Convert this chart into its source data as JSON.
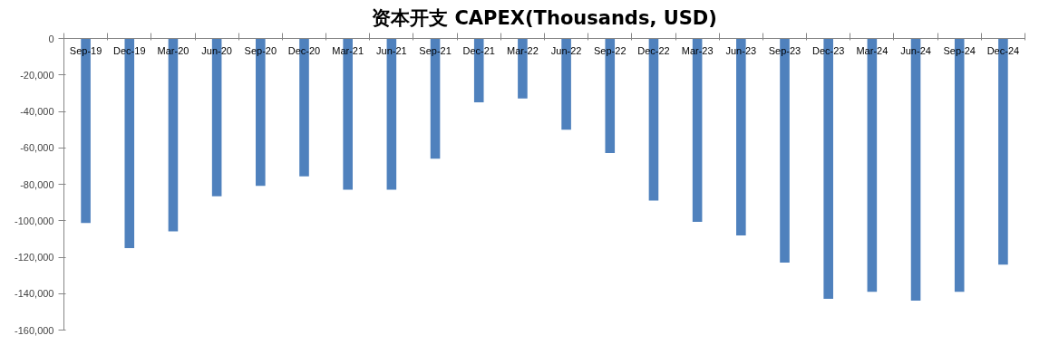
{
  "chart_data": {
    "type": "bar",
    "title": "资本开支 CAPEX(Thousands, USD)",
    "categories": [
      "Sep-19",
      "Dec-19",
      "Mar-20",
      "Jun-20",
      "Sep-20",
      "Dec-20",
      "Mar-21",
      "Jun-21",
      "Sep-21",
      "Dec-21",
      "Mar-22",
      "Jun-22",
      "Sep-22",
      "Dec-22",
      "Mar-23",
      "Jun-23",
      "Sep-23",
      "Dec-23",
      "Mar-24",
      "Jun-24",
      "Sep-24",
      "Dec-24"
    ],
    "values": [
      -101300,
      -115000,
      -105800,
      -86600,
      -80900,
      -75600,
      -83000,
      -83000,
      -66000,
      -35000,
      -32900,
      -50000,
      -62800,
      -88900,
      -100600,
      -108100,
      -123000,
      -142800,
      -139000,
      -143800,
      -139000,
      -124100
    ],
    "color": "#4f81bd",
    "ylim": [
      -160000,
      0
    ],
    "yticks": [
      {
        "value": 0,
        "label": "0"
      },
      {
        "value": -20000,
        "label": "-20,000"
      },
      {
        "value": -40000,
        "label": "-40,000"
      },
      {
        "value": -60000,
        "label": "-60,000"
      },
      {
        "value": -80000,
        "label": "-80,000"
      },
      {
        "value": -100000,
        "label": "-100,000"
      },
      {
        "value": -120000,
        "label": "-120,000"
      },
      {
        "value": -140000,
        "label": "-140,000"
      },
      {
        "value": -160000,
        "label": "-160,000"
      }
    ],
    "grid": false
  }
}
